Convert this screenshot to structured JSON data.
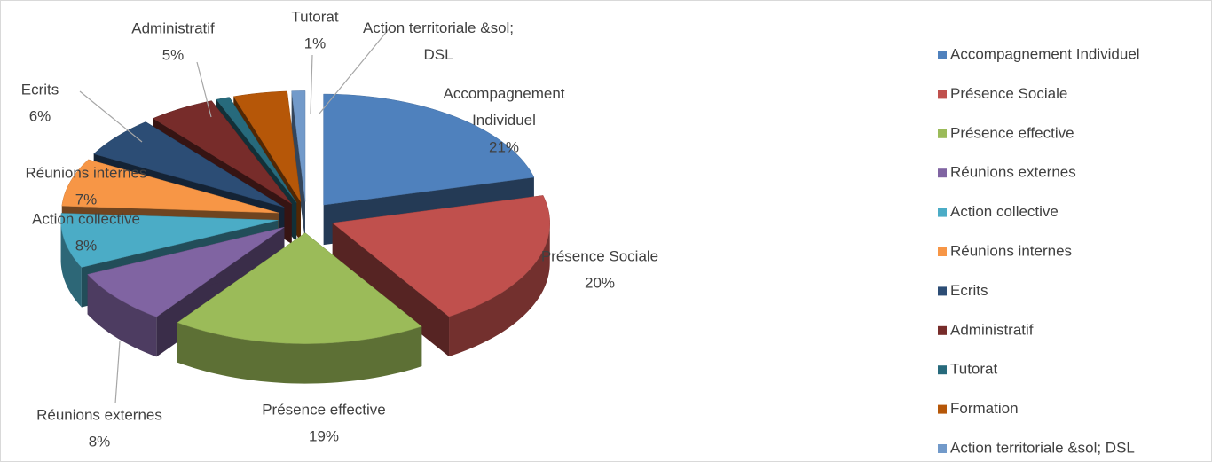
{
  "chart_data": {
    "type": "pie3d",
    "categories": [
      "Accompagnement Individuel",
      "Présence Sociale",
      "Présence effective",
      "Réunions externes",
      "Action collective",
      "Réunions internes",
      "Ecrits",
      "Administratif",
      "Tutorat",
      "Formation",
      "Action territoriale &sol; DSL"
    ],
    "values": [
      21,
      20,
      19,
      8,
      8,
      7,
      6,
      5,
      1,
      4,
      1
    ],
    "value_labels": [
      "21%",
      "20%",
      "19%",
      "8%",
      "8%",
      "7%",
      "6%",
      "5%",
      "1%",
      null,
      null
    ],
    "data_labels": [
      true,
      true,
      true,
      true,
      true,
      true,
      true,
      true,
      true,
      false,
      true
    ],
    "colors": [
      "#4f81bd",
      "#c0504d",
      "#9bbb59",
      "#8064a2",
      "#4bacc6",
      "#f79646",
      "#2c4d75",
      "#772c2a",
      "#276a7c",
      "#b65708",
      "#729aca"
    ],
    "legend": "right"
  }
}
